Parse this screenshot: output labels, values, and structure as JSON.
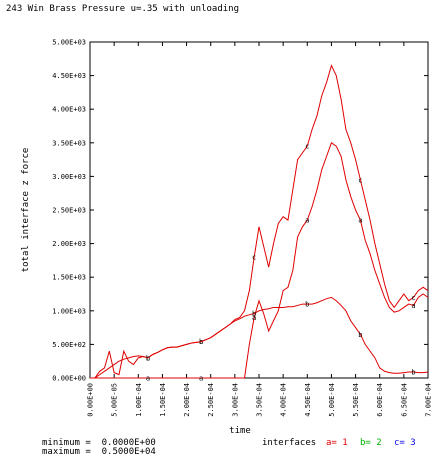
{
  "chart_data": {
    "type": "line",
    "title": "243 Win Brass Pressure u=.35 with unloading",
    "y_label": "total interface z force",
    "x_label": "time",
    "x": [
      0,
      1e-05,
      2e-05,
      3e-05,
      4e-05,
      5e-05,
      6e-05,
      7e-05,
      8e-05,
      9e-05,
      0.0001,
      0.00011,
      0.00012,
      0.00013,
      0.00014,
      0.00015,
      0.00016,
      0.00017,
      0.00018,
      0.00019,
      0.0002,
      0.00021,
      0.00022,
      0.00023,
      0.00024,
      0.00025,
      0.00026,
      0.00027,
      0.00028,
      0.00029,
      0.0003,
      0.00031,
      0.00032,
      0.00033,
      0.00034,
      0.00035,
      0.00036,
      0.00037,
      0.00038,
      0.00039,
      0.0004,
      0.00041,
      0.00042,
      0.00043,
      0.00044,
      0.00045,
      0.00046,
      0.00047,
      0.00048,
      0.00049,
      0.0005,
      0.00051,
      0.00052,
      0.00053,
      0.00054,
      0.00055,
      0.00056,
      0.00057,
      0.00058,
      0.00059,
      0.0006,
      0.00061,
      0.00062,
      0.00063,
      0.00064,
      0.00065,
      0.00066,
      0.00067,
      0.00068,
      0.00069,
      0.0007
    ],
    "series": [
      {
        "name": "a",
        "label": "a= 1",
        "color": "#e00000",
        "legend_color": "#e00000",
        "values": [
          0,
          0,
          0,
          0,
          0,
          0,
          0,
          0,
          0,
          0,
          0,
          0,
          0,
          0,
          0,
          0,
          0,
          0,
          0,
          0,
          0,
          0,
          0,
          0,
          0,
          0,
          0,
          0,
          0,
          0,
          0,
          0,
          0,
          500,
          900,
          1150,
          950,
          700,
          850,
          1000,
          1300,
          1350,
          1600,
          2100,
          2250,
          2350,
          2550,
          2800,
          3100,
          3300,
          3500,
          3450,
          3300,
          2950,
          2700,
          2500,
          2350,
          2050,
          1850,
          1600,
          1400,
          1200,
          1050,
          980,
          1000,
          1050,
          1100,
          1080,
          1200,
          1250,
          1200
        ]
      },
      {
        "name": "b",
        "label": "b= 2",
        "color": "#e00000",
        "legend_color": "#00b000",
        "values": [
          0,
          0,
          50,
          100,
          150,
          200,
          250,
          280,
          300,
          320,
          330,
          320,
          300,
          350,
          380,
          420,
          450,
          460,
          460,
          480,
          500,
          520,
          530,
          540,
          570,
          600,
          650,
          700,
          750,
          800,
          850,
          880,
          920,
          940,
          960,
          1000,
          1020,
          1030,
          1050,
          1050,
          1050,
          1060,
          1060,
          1080,
          1100,
          1100,
          1100,
          1120,
          1150,
          1180,
          1200,
          1150,
          1080,
          1000,
          850,
          750,
          650,
          500,
          400,
          300,
          150,
          100,
          80,
          70,
          70,
          80,
          90,
          90,
          80,
          80,
          90
        ]
      },
      {
        "name": "c",
        "label": "c= 3",
        "color": "#e00000",
        "legend_color": "#0000e0",
        "values": [
          0,
          0,
          100,
          150,
          400,
          80,
          50,
          400,
          250,
          200,
          300,
          320,
          300,
          350,
          380,
          420,
          450,
          460,
          460,
          480,
          500,
          520,
          530,
          540,
          570,
          600,
          650,
          700,
          750,
          800,
          870,
          900,
          1000,
          1300,
          1800,
          2250,
          1950,
          1650,
          2000,
          2300,
          2400,
          2350,
          2800,
          3250,
          3350,
          3450,
          3700,
          3900,
          4200,
          4400,
          4650,
          4500,
          4150,
          3700,
          3500,
          3250,
          2950,
          2650,
          2350,
          2000,
          1700,
          1400,
          1150,
          1050,
          1150,
          1250,
          1150,
          1200,
          1300,
          1350,
          1300
        ]
      }
    ],
    "xlim": [
      0,
      0.0007
    ],
    "ylim": [
      0,
      5000
    ],
    "xticks": [
      {
        "value": 0,
        "label": "0.00E+00"
      },
      {
        "value": 5e-05,
        "label": "5.00E-05"
      },
      {
        "value": 0.0001,
        "label": "1.00E-04"
      },
      {
        "value": 0.00015,
        "label": "1.50E-04"
      },
      {
        "value": 0.0002,
        "label": "2.00E-04"
      },
      {
        "value": 0.00025,
        "label": "2.50E-04"
      },
      {
        "value": 0.0003,
        "label": "3.00E-04"
      },
      {
        "value": 0.00035,
        "label": "3.50E-04"
      },
      {
        "value": 0.0004,
        "label": "4.00E-04"
      },
      {
        "value": 0.00045,
        "label": "4.50E-04"
      },
      {
        "value": 0.0005,
        "label": "5.00E-04"
      },
      {
        "value": 0.00055,
        "label": "5.50E-04"
      },
      {
        "value": 0.0006,
        "label": "6.00E-04"
      },
      {
        "value": 0.00065,
        "label": "6.50E-04"
      },
      {
        "value": 0.0007,
        "label": "7.00E-04"
      }
    ],
    "yticks": [
      {
        "value": 0,
        "label": "0.00E+00"
      },
      {
        "value": 500,
        "label": "5.00E+02"
      },
      {
        "value": 1000,
        "label": "1.00E+03"
      },
      {
        "value": 1500,
        "label": "1.50E+03"
      },
      {
        "value": 2000,
        "label": "2.00E+03"
      },
      {
        "value": 2500,
        "label": "2.50E+03"
      },
      {
        "value": 3000,
        "label": "3.00E+03"
      },
      {
        "value": 3500,
        "label": "3.50E+03"
      },
      {
        "value": 4000,
        "label": "4.00E+03"
      },
      {
        "value": 4500,
        "label": "4.50E+03"
      },
      {
        "value": 5000,
        "label": "5.00E+03"
      }
    ],
    "grid": false,
    "legend_title": "interfaces",
    "footer": [
      "minimum =  0.0000E+00",
      "maximum =  0.5000E+04"
    ]
  }
}
